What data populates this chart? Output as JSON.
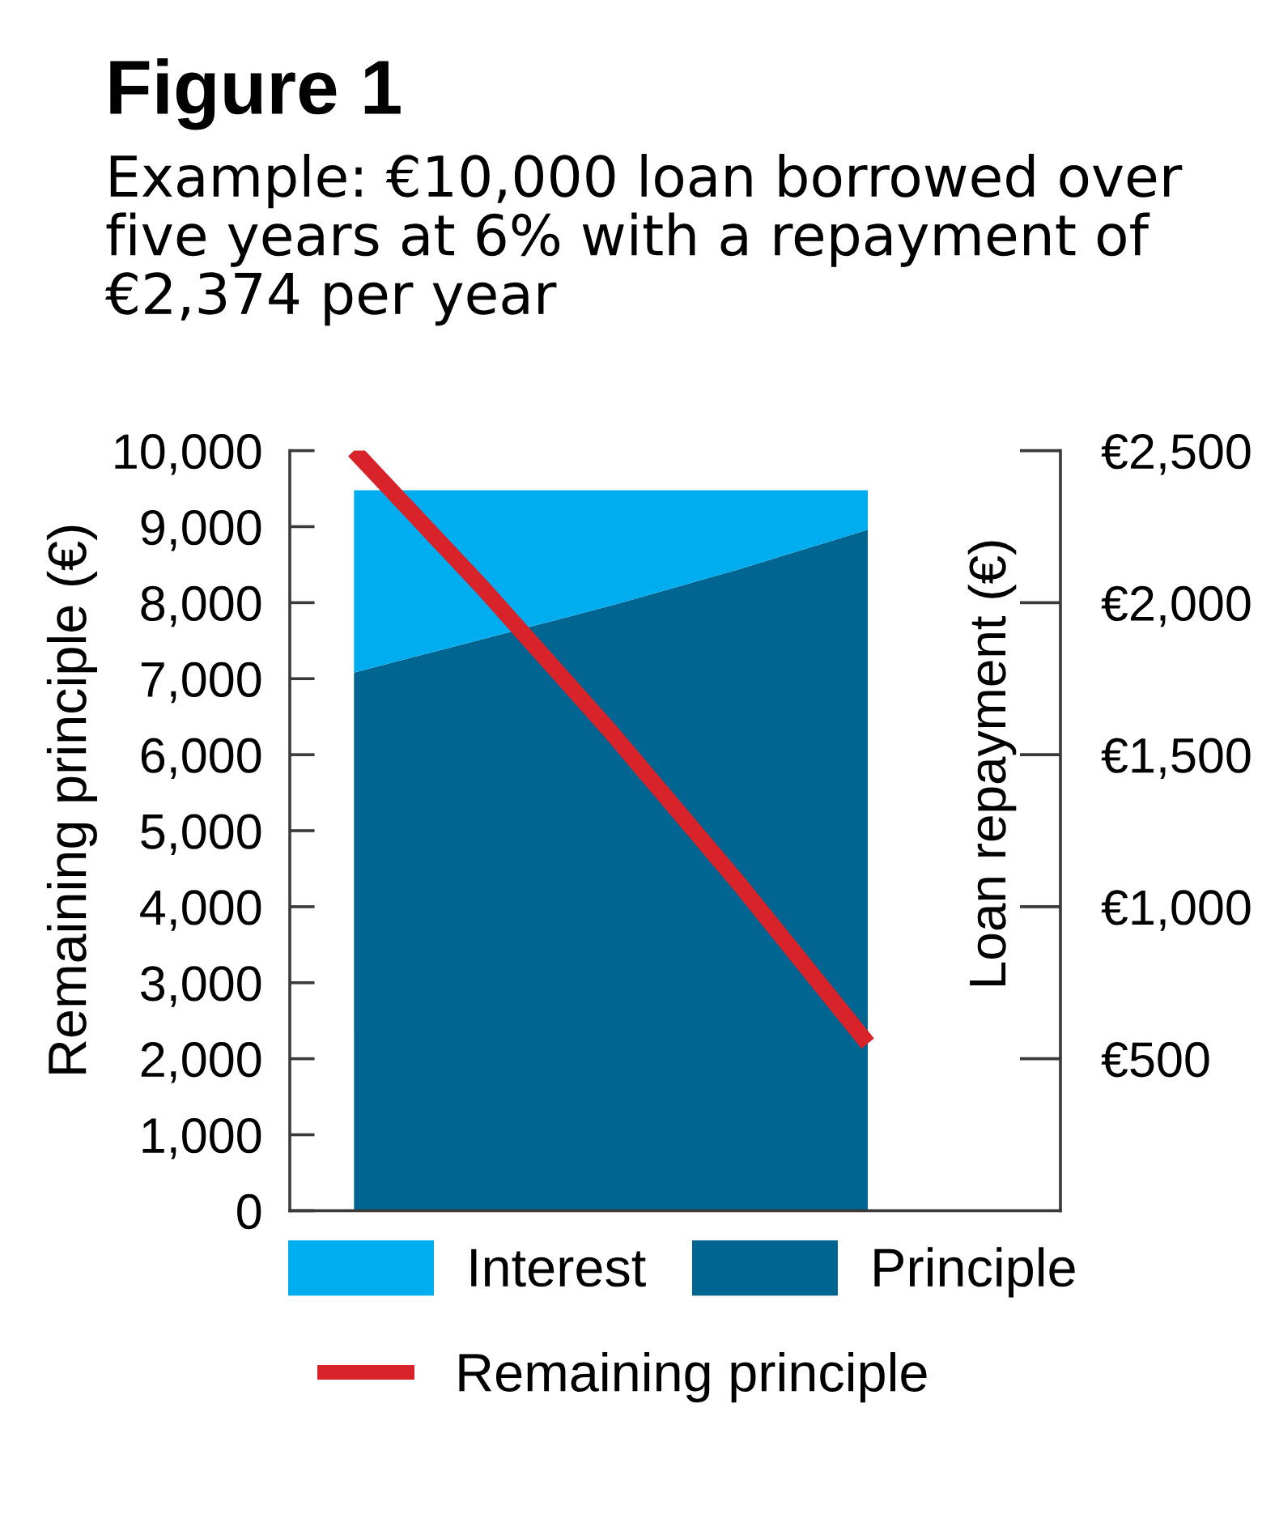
{
  "chart_data": {
    "type": "area",
    "title": "Figure 1",
    "subtitle": "Example: €10,000 loan borrowed over five years at 6% with a repayment of €2,374 per year",
    "ylabel": "Remaining principle (€)",
    "y2label": "Loan repayment (€)",
    "categories": [
      null,
      null,
      null,
      null,
      null
    ],
    "stacked": true,
    "series": [
      {
        "name": "Principle",
        "color": "#006591",
        "axis": "y2",
        "values": [
          1770,
          1880,
          1990,
          2110,
          2240
        ]
      },
      {
        "name": "Interest",
        "color": "#00aeef",
        "axis": "y2",
        "values": [
          600,
          490,
          380,
          260,
          130
        ]
      },
      {
        "name": "Remaining principle",
        "type": "line",
        "color": "#d8232a",
        "values": [
          10000,
          8200,
          6300,
          4300,
          2200
        ]
      }
    ],
    "ylim": [
      0,
      10000
    ],
    "yticks": [
      0,
      {
        "value": 1000,
        "label": "1,000"
      },
      {
        "value": 2000,
        "label": "2,000"
      },
      {
        "value": 3000,
        "label": "3,000"
      },
      {
        "value": 4000,
        "label": "4,000"
      },
      {
        "value": 5000,
        "label": "5,000"
      },
      {
        "value": 6000,
        "label": "6,000"
      },
      {
        "value": 7000,
        "label": "7,000"
      },
      {
        "value": 8000,
        "label": "8,000"
      },
      {
        "value": 9000,
        "label": "9,000"
      },
      {
        "value": 10000,
        "label": "10,000"
      }
    ],
    "y2lim": [
      0,
      2500
    ],
    "y2ticks": [
      {
        "value": 500,
        "label": "€500"
      },
      {
        "value": 1000,
        "label": "€1,000"
      },
      {
        "value": 1500,
        "label": "€1,500"
      },
      {
        "value": 2000,
        "label": "€2,000"
      },
      {
        "value": 2500,
        "label": "€2,500"
      }
    ],
    "legend": "bottom",
    "line_style": "solid"
  }
}
